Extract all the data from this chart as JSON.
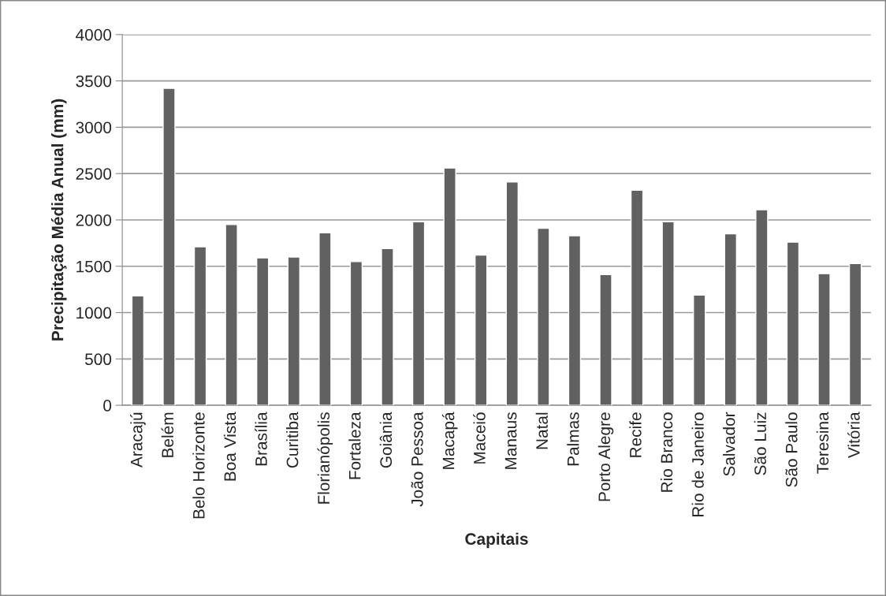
{
  "chart_data": {
    "type": "bar",
    "xlabel": "Capitais",
    "ylabel": "Precipitação Média Anual (mm)",
    "categories": [
      "Aracajú",
      "Belém",
      "Belo Horizonte",
      "Boa Vista",
      "Brasília",
      "Curitiba",
      "Florianópolis",
      "Fortaleza",
      "Goiânia",
      "João Pessoa",
      "Macapá",
      "Maceió",
      "Manaus",
      "Natal",
      "Palmas",
      "Porto Alegre",
      "Recife",
      "Rio Branco",
      "Rio de Janeiro",
      "Salvador",
      "São Luiz",
      "São Paulo",
      "Teresina",
      "Vitória"
    ],
    "values": [
      1180,
      3420,
      1710,
      1950,
      1590,
      1600,
      1860,
      1550,
      1690,
      1980,
      2560,
      1620,
      2410,
      1910,
      1830,
      1410,
      2320,
      1980,
      1190,
      1850,
      2110,
      1760,
      1420,
      1530
    ],
    "color": "#616161",
    "ylim": [
      0,
      4000
    ],
    "yticks": [
      0,
      500,
      1000,
      1500,
      2000,
      2500,
      3000,
      3500,
      4000
    ],
    "grid": "y"
  }
}
